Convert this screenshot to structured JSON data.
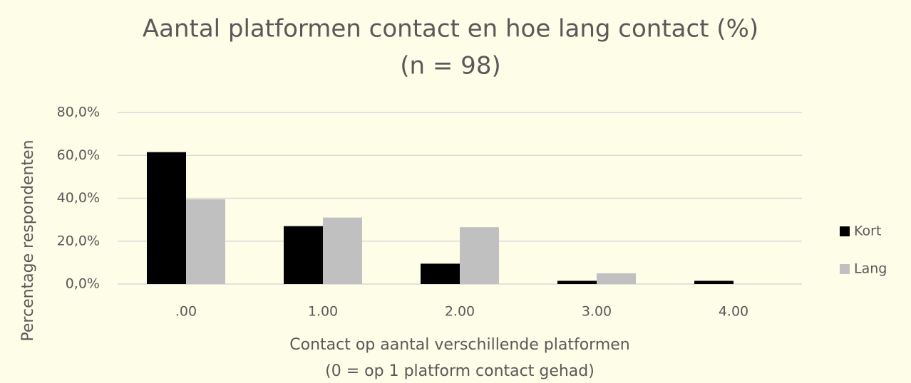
{
  "chart_data": {
    "type": "bar",
    "title": "Aantal platformen contact en hoe lang contact (%)",
    "subtitle": "(n = 98)",
    "y_label": "Percentage respondenten",
    "x_label": [
      "Contact op aantal verschillende platformen",
      "(0 = op 1 platform contact gehad)"
    ],
    "categories": [
      ".00",
      "1.00",
      "2.00",
      "3.00",
      "4.00"
    ],
    "series": [
      {
        "name": "Kort",
        "color": "#000000",
        "values": [
          61.5,
          27,
          9.5,
          1.5,
          1.5
        ]
      },
      {
        "name": "Lang",
        "color": "#c0c0c0",
        "values": [
          39.5,
          31,
          26.5,
          5,
          0
        ]
      }
    ],
    "ylim": [
      0,
      80
    ],
    "yticks": [
      {
        "value": 0,
        "label": "0,0%"
      },
      {
        "value": 20,
        "label": "20,0%"
      },
      {
        "value": 40,
        "label": "40,0%"
      },
      {
        "value": 60,
        "label": "60,0%"
      },
      {
        "value": 80,
        "label": "80,0%"
      }
    ],
    "grid": true,
    "legend": "right"
  }
}
